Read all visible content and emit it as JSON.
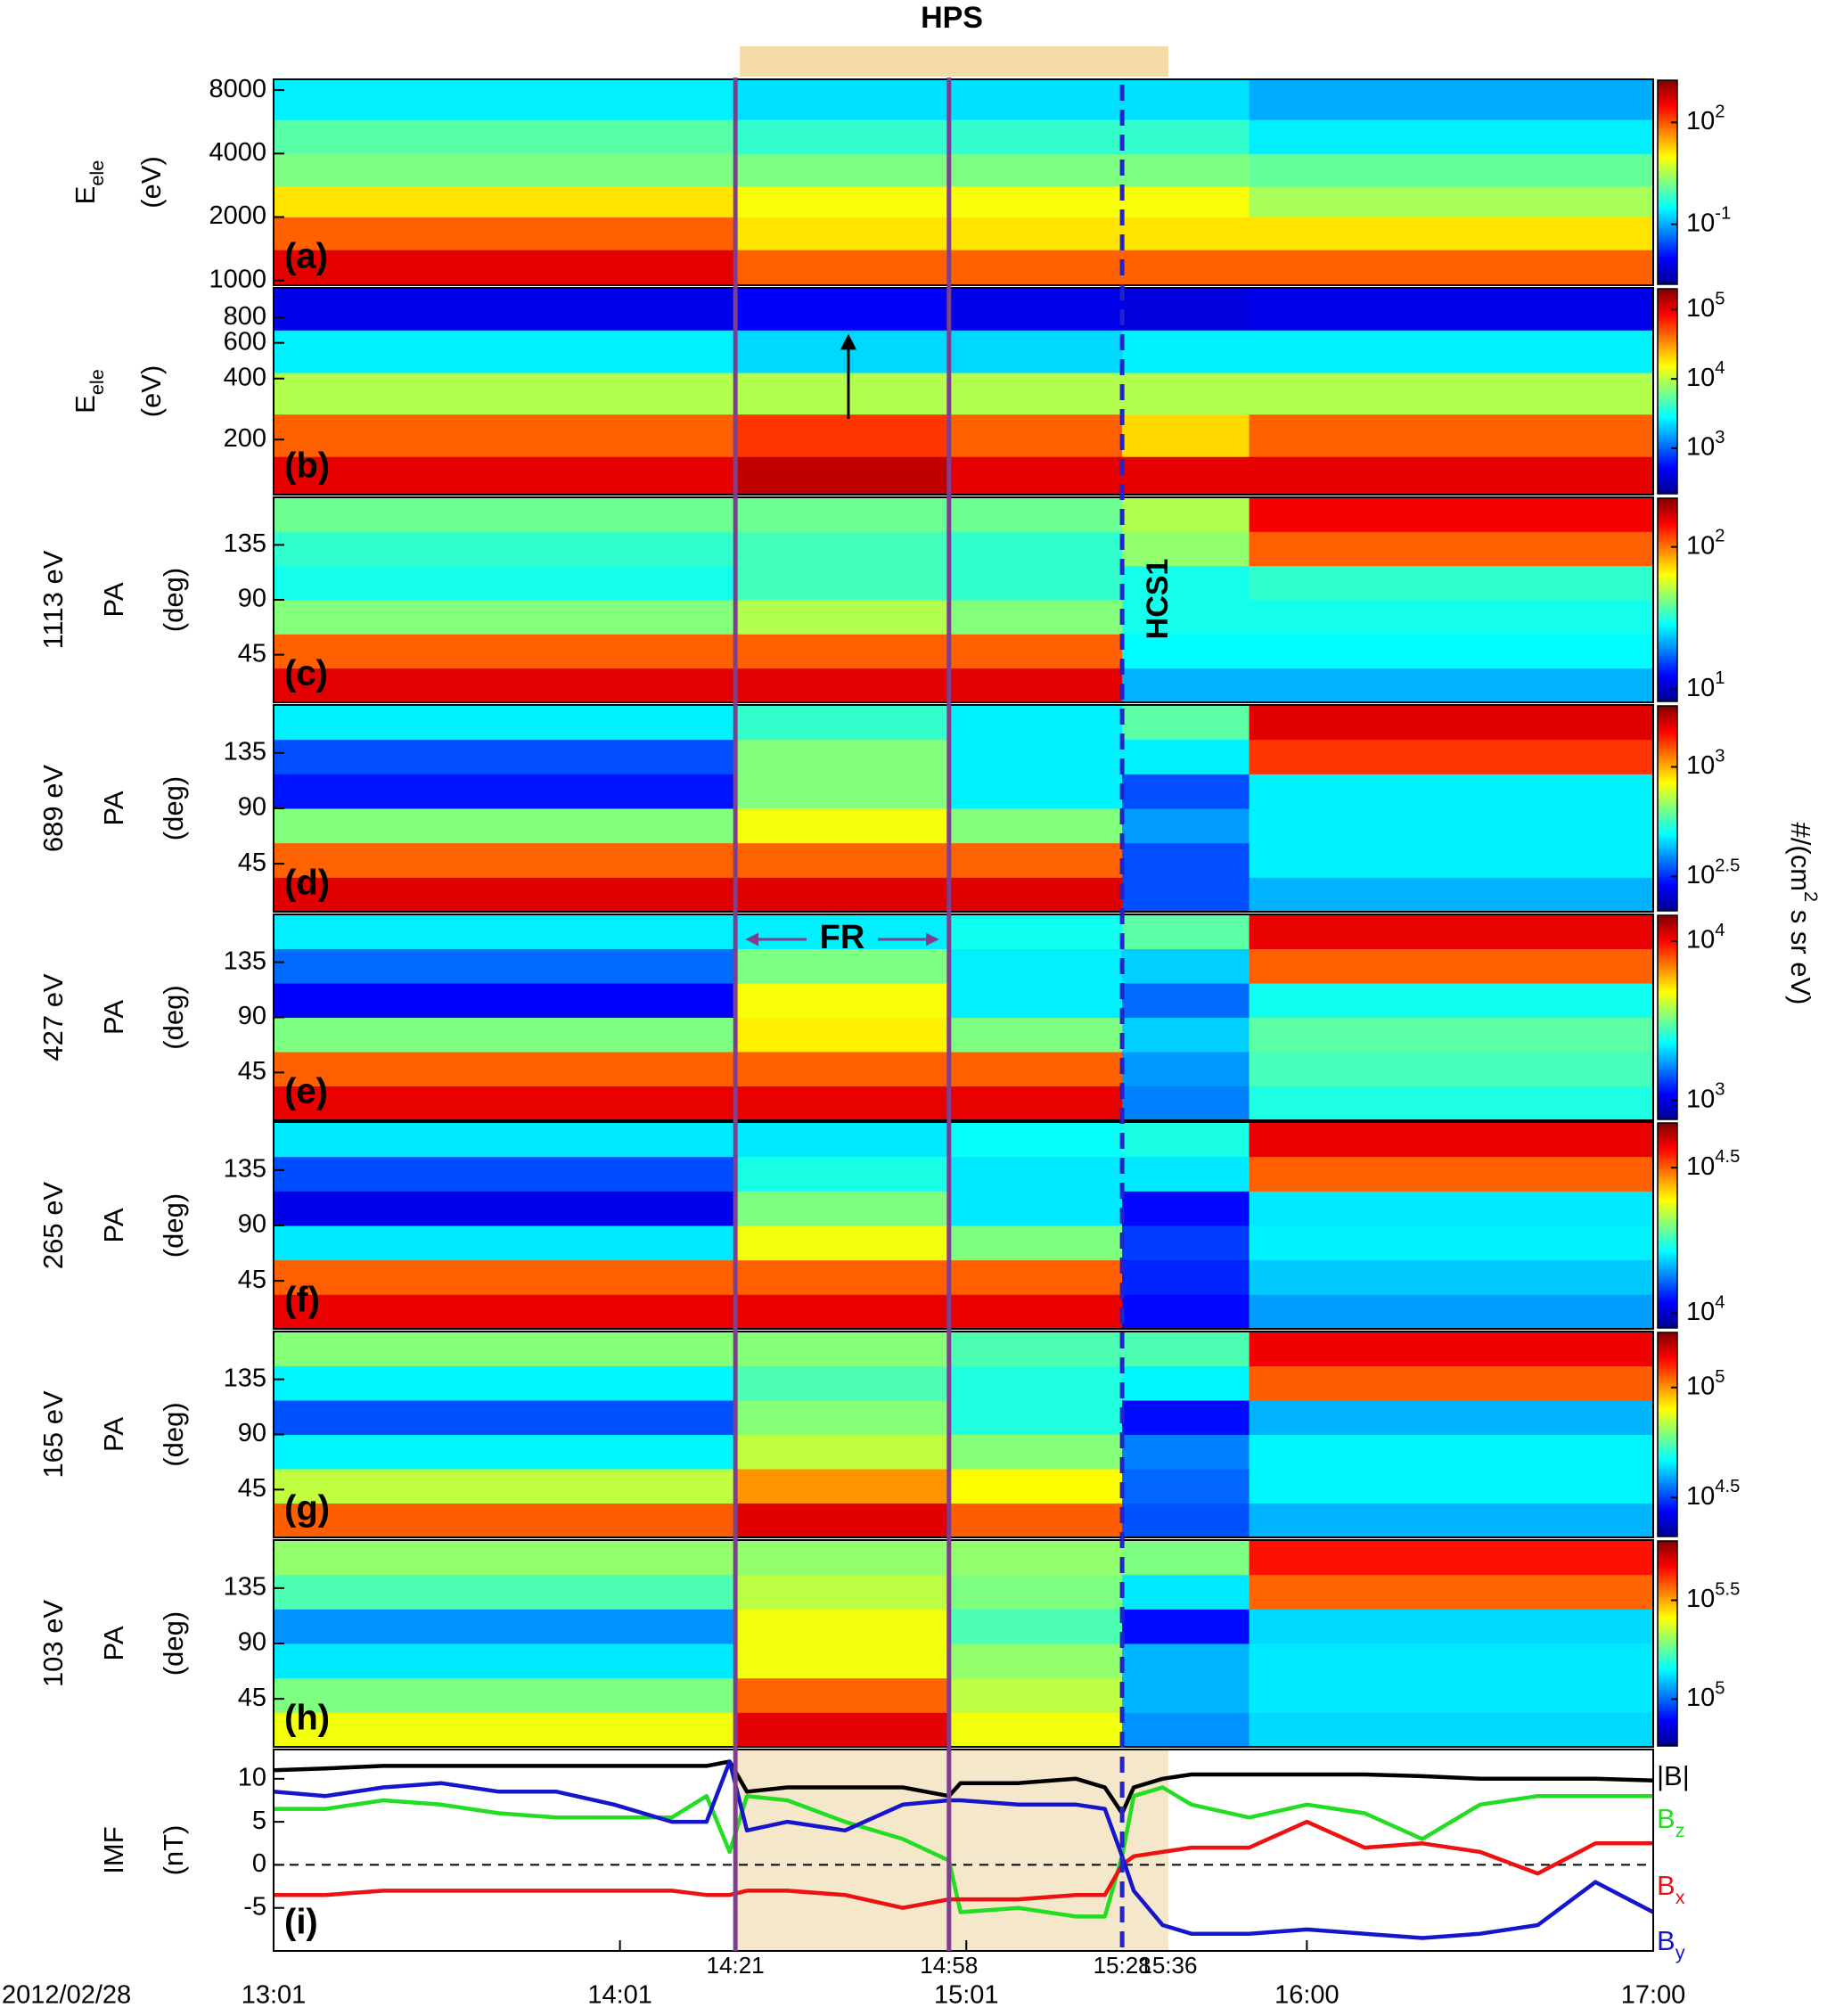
{
  "top_annotation": {
    "text": "HPS",
    "start": "14:21",
    "end": "15:36",
    "color": "#f5dba6",
    "text_color": "#e8a830"
  },
  "time_axis": {
    "date": "2012/02/28",
    "xlim": [
      "13:01",
      "17:00"
    ],
    "xticks": [
      "13:01",
      "14:01",
      "15:01",
      "16:00",
      "17:00"
    ]
  },
  "events": [
    {
      "label": "14:21",
      "color": "#7f3f8f",
      "line": true,
      "dashed": false
    },
    {
      "label": "14:58",
      "color": "#7f3f8f",
      "line": true,
      "dashed": false
    },
    {
      "label": "15:28",
      "color": "#2323cc",
      "line": true,
      "dashed": true
    },
    {
      "label": "15:36",
      "color": "#e8a830",
      "line": false,
      "dashed": false
    }
  ],
  "annotations": {
    "fr": {
      "text": "FR",
      "start": "14:21",
      "end": "14:58",
      "color": "#7f3f8f"
    },
    "hcs": {
      "text": "HCS1",
      "time": "15:28",
      "color": "#2323cc"
    }
  },
  "colorbar_label": "#/(cm^2 s sr eV)",
  "chart_data": [
    {
      "type": "heatmap",
      "panel_label": "(a)",
      "ylabel": "E",
      "ylabel_sub": "ele",
      "yunit": "(eV)",
      "ylog": true,
      "ylim": [
        950,
        9000
      ],
      "yticks": [
        1000,
        2000,
        4000,
        8000
      ],
      "y_edges": [
        950,
        1400,
        2000,
        2800,
        4000,
        5800,
        9000
      ],
      "x_edges": [
        "13:01",
        "14:21",
        "14:58",
        "15:28",
        "15:50",
        "17:00"
      ],
      "values": [
        [
          440,
          83,
          14,
          1.7,
          1.0,
          0.25
        ],
        [
          83,
          14,
          9,
          1.7,
          0.6,
          0.2
        ],
        [
          83,
          14,
          9,
          1.7,
          0.6,
          0.2
        ],
        [
          83,
          14,
          9,
          1.7,
          0.6,
          0.2
        ],
        [
          83,
          14,
          3,
          1.2,
          0.25,
          0.1
        ]
      ],
      "clim": [
        0.0017,
        1750
      ],
      "cticks": [
        {
          "value": 0.1,
          "label": "10^-1"
        },
        {
          "value": 100,
          "label": "10^2"
        }
      ]
    },
    {
      "type": "heatmap",
      "panel_label": "(b)",
      "ylabel": "E",
      "ylabel_sub": "ele",
      "yunit": "(eV)",
      "ylog": true,
      "ylim": [
        107,
        1120
      ],
      "yticks": [
        200,
        400,
        600,
        800
      ],
      "y_edges": [
        107,
        165,
        267,
        428,
        694,
        1120
      ],
      "x_edges": [
        "13:01",
        "14:21",
        "14:58",
        "15:28",
        "15:50",
        "17:00"
      ],
      "values": [
        [
          100000,
          45000,
          9300,
          2600,
          440
        ],
        [
          130000,
          60000,
          9300,
          2200,
          500
        ],
        [
          100000,
          45000,
          9300,
          2200,
          440
        ],
        [
          100000,
          20000,
          9300,
          2600,
          400
        ],
        [
          100000,
          45000,
          9300,
          2600,
          440
        ]
      ],
      "clim": [
        220,
        200000
      ],
      "cticks": [
        {
          "value": 1000,
          "label": "10^3"
        },
        {
          "value": 10000,
          "label": "10^4"
        },
        {
          "value": 100000,
          "label": "10^5"
        }
      ]
    },
    {
      "type": "heatmap",
      "panel_label": "(c)",
      "energy": "1113 eV",
      "ylabel": "PA",
      "yunit": "(deg)",
      "ylog": false,
      "ylim": [
        6,
        174
      ],
      "yticks": [
        45,
        90,
        135
      ],
      "y_edges": [
        6,
        34,
        62,
        90,
        118,
        146,
        174
      ],
      "x_edges": [
        "13:01",
        "14:21",
        "14:58",
        "15:28",
        "15:50",
        "17:00"
      ],
      "values": [
        [
          160,
          107,
          43,
          30,
          33,
          40
        ],
        [
          160,
          107,
          50,
          35,
          35,
          40
        ],
        [
          160,
          107,
          43,
          33,
          33,
          40
        ],
        [
          22,
          28,
          30,
          30,
          45,
          50
        ],
        [
          22,
          28,
          30,
          33,
          107,
          150
        ]
      ],
      "clim": [
        8.2,
        220
      ],
      "cticks": [
        {
          "value": 10,
          "label": "10^1"
        },
        {
          "value": 100,
          "label": "10^2"
        }
      ]
    },
    {
      "type": "heatmap",
      "panel_label": "(d)",
      "energy": "689 eV",
      "ylabel": "PA",
      "yunit": "(deg)",
      "ylog": false,
      "ylim": [
        6,
        174
      ],
      "yticks": [
        45,
        90,
        135
      ],
      "y_edges": [
        6,
        34,
        62,
        90,
        118,
        146,
        174
      ],
      "x_edges": [
        "13:01",
        "14:21",
        "14:58",
        "15:28",
        "15:50",
        "17:00"
      ],
      "values": [
        [
          1550,
          1180,
          650,
          300,
          340,
          480
        ],
        [
          1550,
          1180,
          830,
          650,
          650,
          550
        ],
        [
          1550,
          1180,
          650,
          480,
          480,
          480
        ],
        [
          340,
          340,
          400,
          340,
          480,
          600
        ],
        [
          420,
          480,
          480,
          480,
          1300,
          1550
        ]
      ],
      "clim": [
        220,
        1900
      ],
      "cticks": [
        {
          "value": 316,
          "label": "10^2.5"
        },
        {
          "value": 1000,
          "label": "10^3"
        }
      ]
    },
    {
      "type": "heatmap",
      "panel_label": "(e)",
      "energy": "427 eV",
      "ylabel": "PA",
      "yunit": "(deg)",
      "ylog": false,
      "ylim": [
        6,
        174
      ],
      "yticks": [
        45,
        90,
        135
      ],
      "y_edges": [
        6,
        34,
        62,
        90,
        118,
        146,
        174
      ],
      "x_edges": [
        "13:01",
        "14:21",
        "14:58",
        "15:28",
        "15:50",
        "17:00"
      ],
      "values": [
        [
          10700,
          7600,
          3300,
          1100,
          1500,
          2200
        ],
        [
          10700,
          7600,
          5000,
          4700,
          3300,
          2200
        ],
        [
          10700,
          7600,
          3300,
          2200,
          2200,
          2400
        ],
        [
          1600,
          1700,
          2000,
          1500,
          2000,
          3000
        ],
        [
          2500,
          2800,
          3000,
          2400,
          7600,
          10700
        ]
      ],
      "clim": [
        760,
        14500
      ],
      "cticks": [
        {
          "value": 1000,
          "label": "10^3"
        },
        {
          "value": 10000,
          "label": "10^4"
        }
      ]
    },
    {
      "type": "heatmap",
      "panel_label": "(f)",
      "energy": "265 eV",
      "ylabel": "PA",
      "yunit": "(deg)",
      "ylog": false,
      "ylim": [
        6,
        174
      ],
      "yticks": [
        45,
        90,
        135
      ],
      "y_edges": [
        6,
        34,
        62,
        90,
        118,
        146,
        174
      ],
      "x_edges": [
        "13:01",
        "14:21",
        "14:58",
        "15:28",
        "15:50",
        "17:00"
      ],
      "values": [
        [
          38000,
          31600,
          15800,
          10500,
          12300,
          15800
        ],
        [
          38000,
          31600,
          24000,
          20000,
          17000,
          15800
        ],
        [
          38000,
          31600,
          20000,
          15800,
          15800,
          16500
        ],
        [
          11000,
          11500,
          12000,
          11000,
          15800,
          17000
        ],
        [
          14000,
          15000,
          16000,
          15800,
          31600,
          38000
        ]
      ],
      "clim": [
        8900,
        45000
      ],
      "cticks": [
        {
          "value": 10000,
          "label": "10^4"
        },
        {
          "value": 31600,
          "label": "10^4.5"
        }
      ]
    },
    {
      "type": "heatmap",
      "panel_label": "(g)",
      "energy": "165 eV",
      "ylabel": "PA",
      "yunit": "(deg)",
      "ylog": false,
      "ylim": [
        6,
        174
      ],
      "yticks": [
        45,
        90,
        135
      ],
      "y_edges": [
        6,
        34,
        62,
        90,
        118,
        146,
        174
      ],
      "x_edges": [
        "13:01",
        "14:21",
        "14:58",
        "15:28",
        "15:50",
        "17:00"
      ],
      "values": [
        [
          112000,
          70000,
          46000,
          32500,
          46000,
          62000
        ],
        [
          145000,
          100000,
          70000,
          62000,
          55000,
          62000
        ],
        [
          112000,
          80000,
          62000,
          50000,
          50000,
          55000
        ],
        [
          32500,
          34000,
          36000,
          28000,
          46000,
          55000
        ],
        [
          40000,
          46000,
          46000,
          40000,
          112000,
          140000
        ]
      ],
      "clim": [
        21000,
        178000
      ],
      "cticks": [
        {
          "value": 31600,
          "label": "10^4.5"
        },
        {
          "value": 100000,
          "label": "10^5"
        }
      ]
    },
    {
      "type": "heatmap",
      "panel_label": "(h)",
      "energy": "103 eV",
      "ylabel": "PA",
      "yunit": "(deg)",
      "ylog": false,
      "ylim": [
        6,
        174
      ],
      "yticks": [
        45,
        90,
        135
      ],
      "y_edges": [
        6,
        34,
        62,
        90,
        118,
        146,
        174
      ],
      "x_edges": [
        "13:01",
        "14:21",
        "14:58",
        "15:28",
        "15:50",
        "17:00"
      ],
      "values": [
        [
          250000,
          190000,
          135000,
          110000,
          170000,
          200000
        ],
        [
          500000,
          370000,
          250000,
          250000,
          220000,
          200000
        ],
        [
          250000,
          220000,
          200000,
          170000,
          190000,
          200000
        ],
        [
          110000,
          120000,
          120000,
          80000,
          135000,
          190000
        ],
        [
          130000,
          135000,
          135000,
          130000,
          370000,
          450000
        ]
      ],
      "clim": [
        58000,
        630000
      ],
      "cticks": [
        {
          "value": 100000,
          "label": "10^5"
        },
        {
          "value": 316000,
          "label": "10^5.5"
        }
      ]
    },
    {
      "type": "line",
      "panel_label": "(i)",
      "ylabel": "IMF",
      "yunit": "(nT)",
      "ylim": [
        -10,
        13.4
      ],
      "yticks": [
        -5,
        0,
        5,
        10
      ],
      "shaded": [
        "14:21",
        "15:36"
      ],
      "shade_color": "#f5e7c9",
      "x": [
        "13:01",
        "13:10",
        "13:20",
        "13:30",
        "13:40",
        "13:50",
        "14:00",
        "14:10",
        "14:16",
        "14:20",
        "14:23",
        "14:30",
        "14:40",
        "14:50",
        "14:58",
        "15:00",
        "15:10",
        "15:20",
        "15:25",
        "15:28",
        "15:30",
        "15:35",
        "15:40",
        "15:50",
        "16:00",
        "16:10",
        "16:20",
        "16:30",
        "16:40",
        "16:50",
        "17:00"
      ],
      "series": [
        {
          "name": "|B|",
          "color": "#000000",
          "values": [
            11,
            11.2,
            11.5,
            11.5,
            11.5,
            11.5,
            11.5,
            11.5,
            11.5,
            12,
            8.5,
            9,
            9,
            9,
            8,
            9.5,
            9.5,
            10,
            9,
            6,
            9,
            10,
            10.5,
            10.5,
            10.5,
            10.5,
            10.3,
            10,
            10,
            10,
            9.8
          ]
        },
        {
          "name": "B",
          "sub": "z",
          "color": "#22dd22",
          "values": [
            6.5,
            6.5,
            7.5,
            7,
            6,
            5.5,
            5.5,
            5.5,
            8,
            1.5,
            8,
            7.5,
            5,
            3,
            0.5,
            -5.5,
            -5,
            -6,
            -6,
            1,
            8,
            9,
            7,
            5.5,
            7,
            6,
            3,
            7,
            8,
            8,
            8
          ]
        },
        {
          "name": "B",
          "sub": "x",
          "color": "#ee1111",
          "values": [
            -3.5,
            -3.5,
            -3,
            -3,
            -3,
            -3,
            -3,
            -3,
            -3.5,
            -3.5,
            -3,
            -3,
            -3.5,
            -5,
            -4,
            -4,
            -4,
            -3.5,
            -3.5,
            0,
            1,
            1.5,
            2,
            2,
            5,
            2,
            2.5,
            1.5,
            -1,
            2.5,
            2.5
          ]
        },
        {
          "name": "B",
          "sub": "y",
          "color": "#1515cc",
          "values": [
            8.5,
            8,
            9,
            9.5,
            8.5,
            8.5,
            7,
            5,
            5,
            12,
            4,
            5,
            4,
            7,
            7.5,
            7.5,
            7,
            7,
            6.5,
            1,
            -3,
            -7,
            -8,
            -8,
            -7.5,
            -8,
            -8.5,
            -8,
            -7,
            -2,
            -5.5
          ]
        }
      ]
    }
  ]
}
